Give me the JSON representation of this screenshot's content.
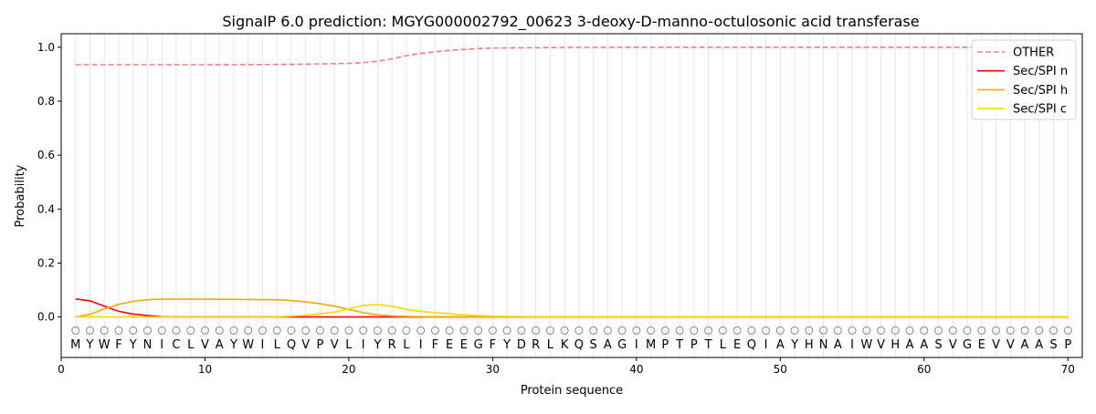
{
  "chart_data": {
    "type": "line",
    "title": "SignalP 6.0 prediction: MGYG000002792_00623 3-deoxy-D-manno-octulosonic acid transferase",
    "xlabel": "Protein sequence",
    "ylabel": "Probability",
    "xlim": [
      0,
      71
    ],
    "ylim": [
      -0.15,
      1.05
    ],
    "xticks": [
      0,
      10,
      20,
      30,
      40,
      50,
      60,
      70
    ],
    "yticks": [
      0.0,
      0.2,
      0.4,
      0.6,
      0.8,
      1.0
    ],
    "ytick_labels": [
      "0.0",
      "0.2",
      "0.4",
      "0.6",
      "0.8",
      "1.0"
    ],
    "sequence": "MYWFYNICLVAYWILQVPVLIYRLIFEEGFYDRLKQSAGIMPTPTLEQIAYHNAIWVHAASVGEVVAASP",
    "marker_label": "O",
    "legend_position": "top-right",
    "series": [
      {
        "name": "OTHER",
        "color": "#f08080",
        "dash": true,
        "points": [
          [
            1,
            0.935
          ],
          [
            10,
            0.935
          ],
          [
            15,
            0.936
          ],
          [
            17,
            0.937
          ],
          [
            19,
            0.939
          ],
          [
            20,
            0.94
          ],
          [
            21,
            0.943
          ],
          [
            22,
            0.948
          ],
          [
            23,
            0.957
          ],
          [
            24,
            0.969
          ],
          [
            25,
            0.977
          ],
          [
            26,
            0.983
          ],
          [
            27,
            0.988
          ],
          [
            28,
            0.992
          ],
          [
            29,
            0.995
          ],
          [
            30,
            0.997
          ],
          [
            32,
            0.998
          ],
          [
            35,
            0.999
          ],
          [
            40,
            1.0
          ],
          [
            70,
            1.0
          ]
        ]
      },
      {
        "name": "Sec/SPI n",
        "color": "#ff0000",
        "dash": false,
        "points": [
          [
            1,
            0.067
          ],
          [
            2,
            0.06
          ],
          [
            3,
            0.04
          ],
          [
            4,
            0.021
          ],
          [
            5,
            0.011
          ],
          [
            6,
            0.005
          ],
          [
            7,
            0.001
          ],
          [
            8,
            0.0
          ],
          [
            70,
            0.0
          ]
        ]
      },
      {
        "name": "Sec/SPI h",
        "color": "#ffa500",
        "dash": false,
        "points": [
          [
            1,
            0.0
          ],
          [
            2,
            0.01
          ],
          [
            3,
            0.03
          ],
          [
            4,
            0.047
          ],
          [
            5,
            0.058
          ],
          [
            6,
            0.064
          ],
          [
            7,
            0.066
          ],
          [
            10,
            0.066
          ],
          [
            13,
            0.065
          ],
          [
            15,
            0.064
          ],
          [
            16,
            0.061
          ],
          [
            17,
            0.056
          ],
          [
            18,
            0.049
          ],
          [
            19,
            0.04
          ],
          [
            20,
            0.028
          ],
          [
            21,
            0.016
          ],
          [
            22,
            0.008
          ],
          [
            23,
            0.004
          ],
          [
            24,
            0.002
          ],
          [
            26,
            0.0
          ],
          [
            70,
            0.0
          ]
        ]
      },
      {
        "name": "Sec/SPI c",
        "color": "#ffd700",
        "dash": false,
        "points": [
          [
            1,
            0.0
          ],
          [
            15,
            0.0
          ],
          [
            16,
            0.003
          ],
          [
            17,
            0.007
          ],
          [
            18,
            0.012
          ],
          [
            19,
            0.018
          ],
          [
            20,
            0.03
          ],
          [
            21,
            0.043
          ],
          [
            22,
            0.046
          ],
          [
            23,
            0.04
          ],
          [
            24,
            0.028
          ],
          [
            25,
            0.021
          ],
          [
            26,
            0.016
          ],
          [
            27,
            0.012
          ],
          [
            28,
            0.008
          ],
          [
            29,
            0.005
          ],
          [
            30,
            0.003
          ],
          [
            31,
            0.002
          ],
          [
            33,
            0.001
          ],
          [
            70,
            0.001
          ]
        ]
      }
    ]
  }
}
